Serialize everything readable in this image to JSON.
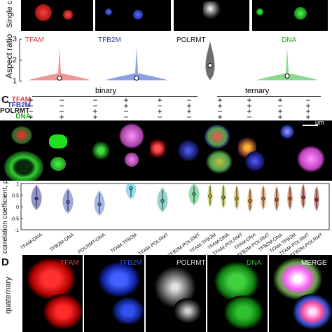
{
  "panel_b": {
    "ylabel_top": "Single c",
    "channels": [
      {
        "name": "TFAM",
        "color": "#d63a3a"
      },
      {
        "name": "TFB2M",
        "color": "#2b3da8"
      },
      {
        "name": "POLRMT",
        "color": "#111111"
      },
      {
        "name": "DNA",
        "color": "#1fa51f"
      }
    ]
  },
  "chart_data": [
    {
      "type": "violin",
      "ylabel": "Aspect ratio",
      "ylim": [
        1,
        3
      ],
      "yticks": [
        "1",
        "2",
        "3"
      ],
      "series": [
        {
          "name": "TFAM",
          "color": "#e05050",
          "median": 1.15
        },
        {
          "name": "TFB2M",
          "color": "#4060d0",
          "median": 1.15
        },
        {
          "name": "POLRMT",
          "color": "#555555",
          "median": 1.75
        },
        {
          "name": "DNA",
          "color": "#40c040",
          "median": 1.25
        }
      ]
    },
    {
      "type": "violin",
      "ylabel": "correlation coefficient, ρ",
      "ylim": [
        -1,
        1
      ],
      "yticks": [
        "1",
        "0.5",
        "0",
        "-0.5",
        "-1"
      ],
      "categories": [
        "TFAM-DNA",
        "TFB2M-DNA",
        "POLRMT-DNA",
        "TFAM-TFB2M",
        "TFAM-POLRMT",
        "TFB2M-POLRMT",
        "TFAM-TFB2M",
        "TFAM-DNA",
        "TFAM-POLRMT",
        "TFAM-DNA",
        "TFB2M-POLRMT",
        "TFB2M-DNA",
        "TFAM-TFB2M",
        "TFAM-POLRMT",
        "TFB2M-POLRMT"
      ],
      "medians": [
        0.35,
        0.2,
        0.1,
        0.8,
        0.25,
        0.55,
        0.45,
        0.4,
        0.35,
        0.25,
        0.35,
        0.3,
        0.35,
        0.4,
        0.3
      ]
    }
  ],
  "panel_c": {
    "letter": "C",
    "group_binary": "binary",
    "group_ternary": "ternary",
    "rows": [
      {
        "name": "TFAM",
        "color": "#d63a3a",
        "signs": [
          "+",
          "−",
          "−",
          "+",
          "+",
          "−",
          "+",
          "+",
          "+",
          "−"
        ]
      },
      {
        "name": "TFB2M",
        "color": "#2b3da8",
        "signs": [
          "−",
          "−",
          "−",
          "+",
          "−",
          "+",
          "+",
          "+",
          "−",
          "+"
        ]
      },
      {
        "name": "POLRMT",
        "color": "#111111",
        "signs": [
          "−",
          "−",
          "+",
          "−",
          "+",
          "+",
          "−",
          "+",
          "+",
          "+"
        ]
      },
      {
        "name": "DNA",
        "color": "#1fa51f",
        "signs": [
          "+",
          "+",
          "+",
          "−",
          "−",
          "−",
          "+",
          "−",
          "+",
          "+"
        ]
      }
    ],
    "scalebar": "μm"
  },
  "panel_d": {
    "letter": "D",
    "side_label": "quaternary",
    "labels": [
      {
        "text": "TFAM",
        "color": "#e04040"
      },
      {
        "text": "TFB2M",
        "color": "#3050e0"
      },
      {
        "text": "POLRMT",
        "color": "#dddddd"
      },
      {
        "text": "DNA",
        "color": "#30c030"
      },
      {
        "text": "MERGE",
        "color": "#ffffff"
      }
    ]
  }
}
